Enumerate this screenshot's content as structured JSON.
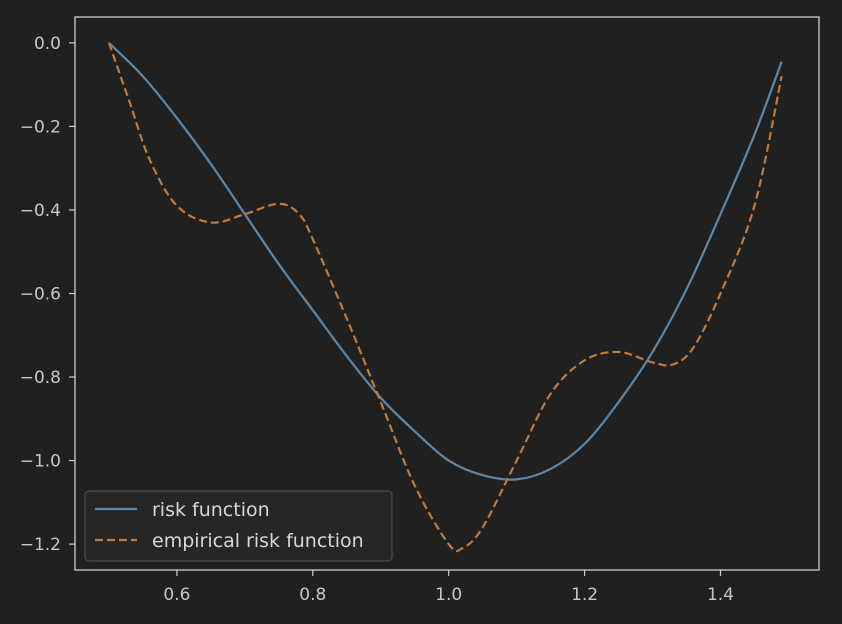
{
  "chart_data": {
    "type": "line",
    "title": "",
    "xlabel": "",
    "ylabel": "",
    "xlim": [
      0.45,
      1.545
    ],
    "ylim": [
      -1.262,
      0.062
    ],
    "x_ticks": [
      0.6,
      0.8,
      1.0,
      1.2,
      1.4
    ],
    "x_tick_labels": [
      "0.6",
      "0.8",
      "1.0",
      "1.2",
      "1.4"
    ],
    "y_ticks": [
      0.0,
      -0.2,
      -0.4,
      -0.6,
      -0.8,
      -1.0,
      -1.2
    ],
    "y_tick_labels": [
      "0.0",
      "−0.2",
      "−0.4",
      "−0.6",
      "−0.8",
      "−1.0",
      "−1.2"
    ],
    "grid": false,
    "legend_position": "lower-left",
    "series": [
      {
        "name": "risk function",
        "style": "solid",
        "color": "#5f87a8",
        "x": [
          0.5,
          0.55,
          0.6,
          0.65,
          0.7,
          0.75,
          0.8,
          0.85,
          0.9,
          0.95,
          1.0,
          1.05,
          1.1,
          1.15,
          1.2,
          1.25,
          1.3,
          1.35,
          1.4,
          1.45,
          1.49
        ],
        "y": [
          0.0,
          -0.08,
          -0.18,
          -0.29,
          -0.41,
          -0.53,
          -0.64,
          -0.75,
          -0.85,
          -0.93,
          -1.0,
          -1.035,
          -1.045,
          -1.02,
          -0.96,
          -0.86,
          -0.74,
          -0.59,
          -0.41,
          -0.22,
          -0.045
        ]
      },
      {
        "name": "empirical risk function",
        "style": "dashed",
        "color": "#c17a3d",
        "x": [
          0.5,
          0.53,
          0.56,
          0.6,
          0.65,
          0.7,
          0.75,
          0.78,
          0.8,
          0.85,
          0.9,
          0.95,
          1.0,
          1.02,
          1.05,
          1.1,
          1.15,
          1.2,
          1.25,
          1.3,
          1.33,
          1.36,
          1.4,
          1.45,
          1.49
        ],
        "y": [
          0.0,
          -0.14,
          -0.28,
          -0.39,
          -0.43,
          -0.41,
          -0.385,
          -0.41,
          -0.47,
          -0.66,
          -0.86,
          -1.06,
          -1.2,
          -1.21,
          -1.16,
          -1.0,
          -0.84,
          -0.76,
          -0.74,
          -0.765,
          -0.77,
          -0.73,
          -0.6,
          -0.39,
          -0.08
        ]
      }
    ]
  }
}
